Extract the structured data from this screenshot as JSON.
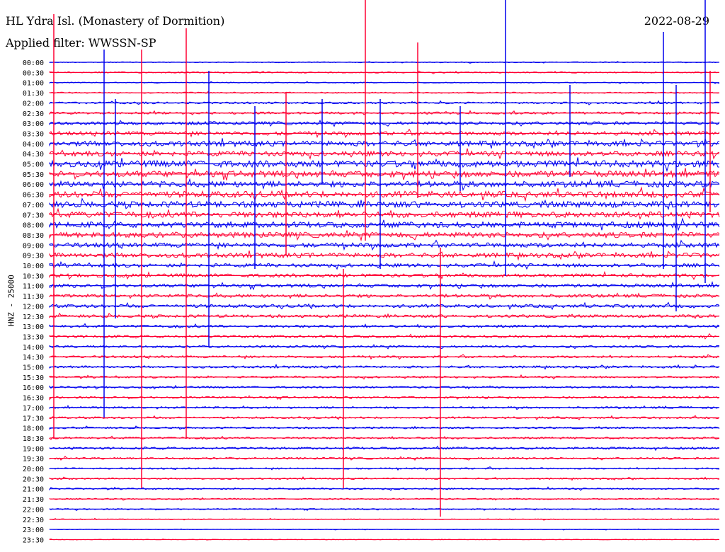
{
  "header": {
    "station": "HL Ydra Isl. (Monastery of Dormition)",
    "date": "2022-08-29",
    "filter": "Applied filter: WWSSN-SP"
  },
  "axis": {
    "ylabel": "HNZ - 25000"
  },
  "colors": {
    "blue": "#0000ee",
    "red": "#ff0033"
  },
  "chart_data": {
    "type": "line",
    "title": "HL Ydra Isl. (Monastery of Dormition)",
    "subtitle": "Applied filter: WWSSN-SP",
    "ylabel": "HNZ - 25000",
    "tick_labels": [
      "00:00",
      "00:30",
      "01:00",
      "01:30",
      "02:00",
      "02:30",
      "03:00",
      "03:30",
      "04:00",
      "04:30",
      "05:00",
      "05:30",
      "06:00",
      "06:30",
      "07:00",
      "07:30",
      "08:00",
      "08:30",
      "09:00",
      "09:30",
      "10:00",
      "10:30",
      "11:00",
      "11:30",
      "12:00",
      "12:30",
      "13:00",
      "13:30",
      "14:00",
      "14:30",
      "15:00",
      "15:30",
      "16:00",
      "16:30",
      "17:00",
      "17:30",
      "18:00",
      "18:30",
      "19:00",
      "19:30",
      "20:00",
      "20:30",
      "21:00",
      "21:30",
      "22:00",
      "22:30",
      "23:00",
      "23:30"
    ],
    "series_colors": [
      "blue",
      "red"
    ],
    "trace_levels": [
      0.15,
      0.2,
      0.15,
      0.2,
      0.3,
      0.35,
      0.5,
      0.6,
      0.8,
      0.75,
      1.0,
      0.95,
      0.9,
      0.95,
      0.95,
      0.9,
      0.9,
      0.85,
      0.7,
      0.7,
      0.55,
      0.55,
      0.55,
      0.5,
      0.5,
      0.45,
      0.4,
      0.4,
      0.35,
      0.35,
      0.35,
      0.3,
      0.3,
      0.3,
      0.3,
      0.3,
      0.3,
      0.3,
      0.35,
      0.3,
      0.25,
      0.25,
      0.25,
      0.2,
      0.2,
      0.15,
      0.1,
      0.1
    ],
    "grid": false
  }
}
